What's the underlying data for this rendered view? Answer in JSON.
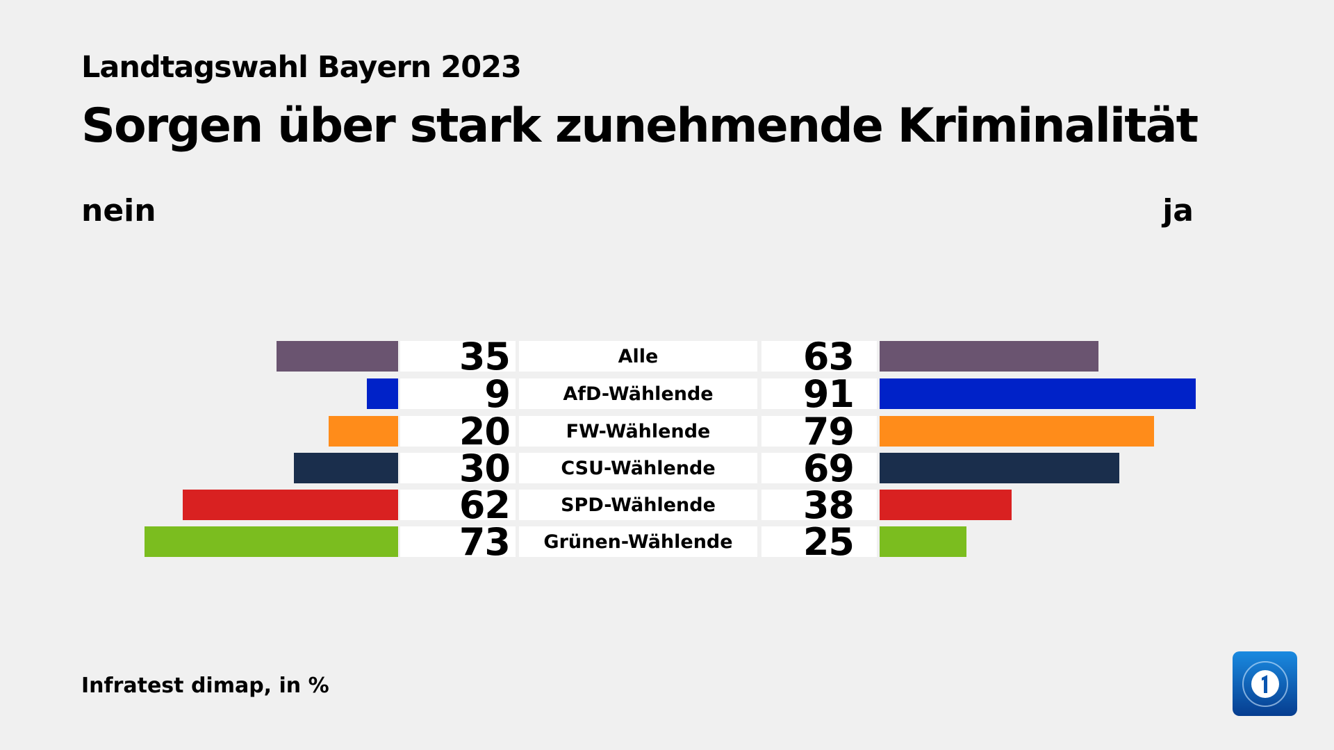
{
  "subtitle": "Landtagswahl Bayern 2023",
  "title": "Sorgen über stark zunehmende Kriminalität",
  "footer": "Infratest dimap, in %",
  "logo_text": "1",
  "chart_data": {
    "type": "bar",
    "orientation": "horizontal-diverging",
    "left_label": "nein",
    "right_label": "ja",
    "categories": [
      "Alle",
      "AfD-Wählende",
      "FW-Wählende",
      "CSU-Wählende",
      "SPD-Wählende",
      "Grünen-Wählende"
    ],
    "series": [
      {
        "name": "nein",
        "values": [
          35,
          9,
          20,
          30,
          62,
          73
        ]
      },
      {
        "name": "ja",
        "values": [
          63,
          91,
          79,
          69,
          38,
          25
        ]
      }
    ],
    "colors": [
      "#6a5470",
      "#0022c8",
      "#ff8c1a",
      "#1a2e4c",
      "#d92121",
      "#7bbd1f"
    ],
    "unit": "%"
  }
}
